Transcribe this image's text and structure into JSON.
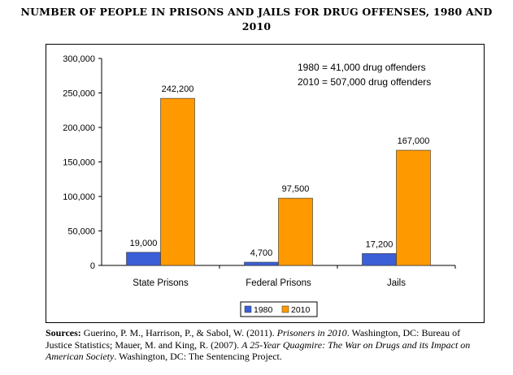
{
  "title": {
    "line1": "NUMBER OF PEOPLE IN PRISONS AND JAILS FOR DRUG OFFENSES, 1980 AND",
    "line2": "2010"
  },
  "chart_data": {
    "type": "bar",
    "categories": [
      "State Prisons",
      "Federal Prisons",
      "Jails"
    ],
    "series": [
      {
        "name": "1980",
        "values": [
          19000,
          4700,
          17200
        ],
        "color": "#3a5fd6"
      },
      {
        "name": "2010",
        "values": [
          242200,
          97500,
          167000
        ],
        "color": "#ff9900"
      }
    ],
    "value_labels": [
      [
        "19,000",
        "4,700",
        "17,200"
      ],
      [
        "242,200",
        "97,500",
        "167,000"
      ]
    ],
    "ylim": [
      0,
      300000
    ],
    "y_ticks": [
      "0",
      "50,000",
      "100,000",
      "150,000",
      "200,000",
      "250,000",
      "300,000"
    ],
    "annotations": [
      "1980 = 41,000 drug offenders",
      "2010 = 507,000 drug offenders"
    ],
    "legend_position": "bottom",
    "grid": false
  },
  "sources": {
    "label": "Sources:",
    "part1": " Guerino, P. M., Harrison, P., & Sabol, W. (2011). ",
    "title1": "Prisoners in 2010",
    "part2": ". Washington, DC: Bureau of Justice Statistics; Mauer, M. and King, R. (2007). ",
    "title2": "A 25-Year Quagmire: The War on Drugs and its Impact on American Society",
    "part3": ". Washington, DC: The Sentencing Project."
  }
}
